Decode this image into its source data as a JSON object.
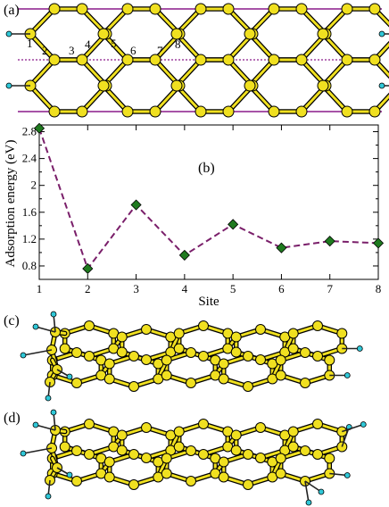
{
  "panels": {
    "a": "(a)",
    "b": "(b)",
    "c": "(c)",
    "d": "(d)"
  },
  "site_labels": [
    "1",
    "2",
    "3",
    "4",
    "5",
    "6",
    "7",
    "8"
  ],
  "colors": {
    "carbon": "#f0e020",
    "hydrogen": "#30c8d8",
    "line": "#7a1f6a",
    "marker": "#1f7a1f",
    "boundary": "#8a1a8a"
  },
  "chart_data": {
    "type": "line",
    "xlabel": "Site",
    "ylabel": "Adsorption energy (eV)",
    "xlim": [
      1,
      8
    ],
    "ylim": [
      0.6,
      2.9
    ],
    "xticks": [
      "1",
      "2",
      "3",
      "4",
      "5",
      "6",
      "7",
      "8"
    ],
    "yticks": [
      "0.8",
      "1.2",
      "1.6",
      "2",
      "2.4",
      "2.8"
    ],
    "x": [
      1,
      2,
      3,
      4,
      5,
      6,
      7,
      8
    ],
    "y": [
      2.85,
      0.76,
      1.71,
      0.96,
      1.42,
      1.07,
      1.17,
      1.14
    ],
    "line_style": "dashed",
    "marker": "diamond",
    "grid": false,
    "legend": "none"
  }
}
